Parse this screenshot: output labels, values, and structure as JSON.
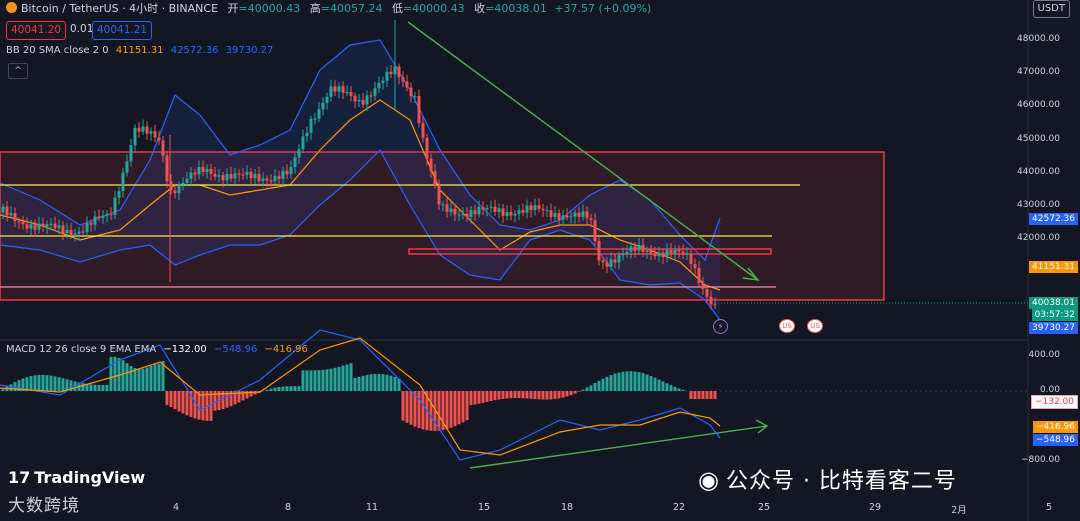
{
  "header": {
    "symbol": "Bitcoin / TetherUS · 4小时 · BINANCE",
    "open_label": "开",
    "open": "=40000.43",
    "high_label": "高",
    "high": "=40057.24",
    "low_label": "低",
    "low": "=40000.43",
    "close_label": "收",
    "close": "=40038.01",
    "change": "+37.57 (+0.09%)"
  },
  "trade": {
    "sell": "40041.20",
    "spread": "0.01",
    "buy": "40041.21"
  },
  "indicators": {
    "bb_label": "BB 20 SMA close 2 0",
    "bb_basis": "41151.31",
    "bb_upper": "42572.36",
    "bb_lower": "39730.27",
    "collapse_icon": "^",
    "macd_label": "MACD 12 26 close 9 EMA EMA",
    "macd_hist": "−132.00",
    "macd_line": "−548.96",
    "macd_signal": "−416.96"
  },
  "currency": "USDT",
  "price_axis": {
    "ticks": [
      "48000.00",
      "47000.00",
      "46000.00",
      "45000.00",
      "44000.00",
      "43000.00",
      "42000.00"
    ],
    "price_tag": "40038.01",
    "countdown": "03:57:32",
    "lower_tag": "39730.27",
    "upper_tag": "42572.36",
    "basis_tag": "41151.31"
  },
  "macd_axis": {
    "ticks": [
      "400.00",
      "0.00",
      "−800.00"
    ],
    "tag_hist": "−132.00",
    "tag_signal": "−416.96",
    "tag_macd": "−548.96"
  },
  "time_axis": [
    "4",
    "8",
    "11",
    "15",
    "18",
    "22",
    "25",
    "29",
    "2月",
    "5"
  ],
  "colors": {
    "up": "#26a69a",
    "down": "#ef5350",
    "bb": "#2962ff",
    "basis": "#ff9800",
    "zone": "#f23645",
    "level": "#ffeb3b",
    "trend": "#4caf50"
  },
  "events": {
    "flash_icon": "⚡",
    "flag_1": "US",
    "flag_2": "US"
  },
  "branding": {
    "tradingview_mark": "17",
    "tradingview": "TradingView",
    "dashu": "大数跨境",
    "watermark_icon": "wechat-icon",
    "watermark_glyph": "◉",
    "watermark": "公众号 · 比特看客二号"
  },
  "chart_data": {
    "type": "candlestick",
    "symbol": "BTC/USDT",
    "interval": "4h",
    "ylim": [
      39400,
      48700
    ],
    "bollinger": {
      "basis": 41151.31,
      "upper": 42572.36,
      "lower": 39730.27
    },
    "last": {
      "open": 40000.43,
      "high": 40057.24,
      "low": 40000.43,
      "close": 40038.01
    },
    "levels": [
      43600,
      42050,
      41550,
      40500
    ],
    "macd": {
      "macd": -548.96,
      "signal": -416.96,
      "histogram": -132.0,
      "ylim": [
        -900,
        600
      ]
    }
  }
}
